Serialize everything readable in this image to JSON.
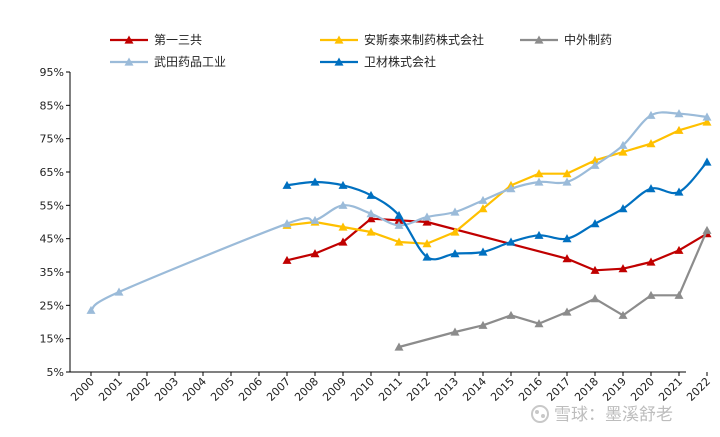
{
  "chart_data": {
    "type": "line",
    "title": "",
    "xlabel": "",
    "ylabel": "",
    "ylim": [
      5,
      95
    ],
    "yticks": [
      "5%",
      "15%",
      "25%",
      "35%",
      "45%",
      "55%",
      "65%",
      "75%",
      "85%",
      "95%"
    ],
    "ytick_values": [
      5,
      15,
      25,
      35,
      45,
      55,
      65,
      75,
      85,
      95
    ],
    "x": [
      2000,
      2001,
      2002,
      2003,
      2004,
      2005,
      2006,
      2007,
      2008,
      2009,
      2010,
      2011,
      2012,
      2013,
      2014,
      2015,
      2016,
      2017,
      2018,
      2019,
      2020,
      2021,
      2022
    ],
    "xticks": [
      "2000",
      "2001",
      "2002",
      "2003",
      "2004",
      "2005",
      "2006",
      "2007",
      "2008",
      "2009",
      "2010",
      "2011",
      "2012",
      "2013",
      "2014",
      "2015",
      "2016",
      "2017",
      "2018",
      "2019",
      "2020",
      "2021",
      "2022"
    ],
    "grid": false,
    "legend_position": "top",
    "series": [
      {
        "name": "第一三共",
        "color": "#c00000",
        "smooth": false,
        "values": [
          null,
          null,
          null,
          null,
          null,
          null,
          null,
          38.5,
          40.5,
          44,
          51,
          50.5,
          50,
          null,
          null,
          null,
          null,
          39,
          35.5,
          36,
          38,
          41.5,
          46.5
        ],
        "markers": [
          1,
          0,
          0,
          0,
          0,
          0,
          0,
          1,
          1,
          1,
          1,
          1,
          1,
          0,
          0,
          0,
          0,
          1,
          1,
          1,
          1,
          1,
          1
        ]
      },
      {
        "name": "安斯泰来制药株式会社",
        "color": "#ffc000",
        "smooth": false,
        "values": [
          null,
          null,
          null,
          null,
          null,
          null,
          null,
          49,
          50,
          48.5,
          47,
          44,
          43.5,
          47,
          54,
          61,
          64.5,
          64.5,
          68.5,
          71,
          73.5,
          77.5,
          80
        ],
        "markers": [
          1,
          0,
          0,
          0,
          0,
          0,
          0,
          1,
          1,
          1,
          1,
          1,
          1,
          1,
          1,
          1,
          1,
          1,
          1,
          1,
          1,
          1,
          1
        ]
      },
      {
        "name": "中外制药",
        "color": "#8c8c8c",
        "smooth": false,
        "values": [
          null,
          null,
          null,
          null,
          null,
          null,
          null,
          null,
          null,
          null,
          null,
          12.5,
          null,
          17,
          19,
          22,
          19.5,
          23,
          27,
          22,
          28,
          28,
          47.5
        ],
        "markers": [
          1,
          0,
          0,
          0,
          0,
          0,
          0,
          0,
          0,
          0,
          0,
          1,
          0,
          1,
          1,
          1,
          1,
          1,
          1,
          1,
          1,
          1,
          1
        ]
      },
      {
        "name": "武田药品工业",
        "color": "#9bbbd9",
        "smooth": true,
        "values": [
          23.5,
          29,
          null,
          null,
          null,
          null,
          null,
          49.5,
          50.5,
          55,
          52.5,
          49,
          51.5,
          53,
          56.5,
          60,
          62,
          62,
          67,
          73,
          82,
          82.5,
          81.5
        ],
        "markers": [
          1,
          1,
          0,
          0,
          0,
          0,
          0,
          1,
          1,
          1,
          1,
          1,
          1,
          1,
          1,
          1,
          1,
          1,
          1,
          1,
          1,
          1,
          1
        ]
      },
      {
        "name": "卫材株式会社",
        "color": "#0070c0",
        "smooth": true,
        "values": [
          null,
          null,
          null,
          null,
          null,
          null,
          null,
          61,
          62,
          61,
          58,
          52,
          39.5,
          40.5,
          41,
          44,
          46,
          45,
          49.5,
          54,
          60,
          59,
          68
        ],
        "markers": [
          1,
          0,
          0,
          0,
          0,
          0,
          0,
          1,
          1,
          1,
          1,
          1,
          1,
          1,
          1,
          1,
          1,
          1,
          1,
          1,
          1,
          1,
          1
        ]
      }
    ]
  },
  "watermark": {
    "text": "雪球：墨溪舒老",
    "icon": "snowball-logo-icon"
  }
}
